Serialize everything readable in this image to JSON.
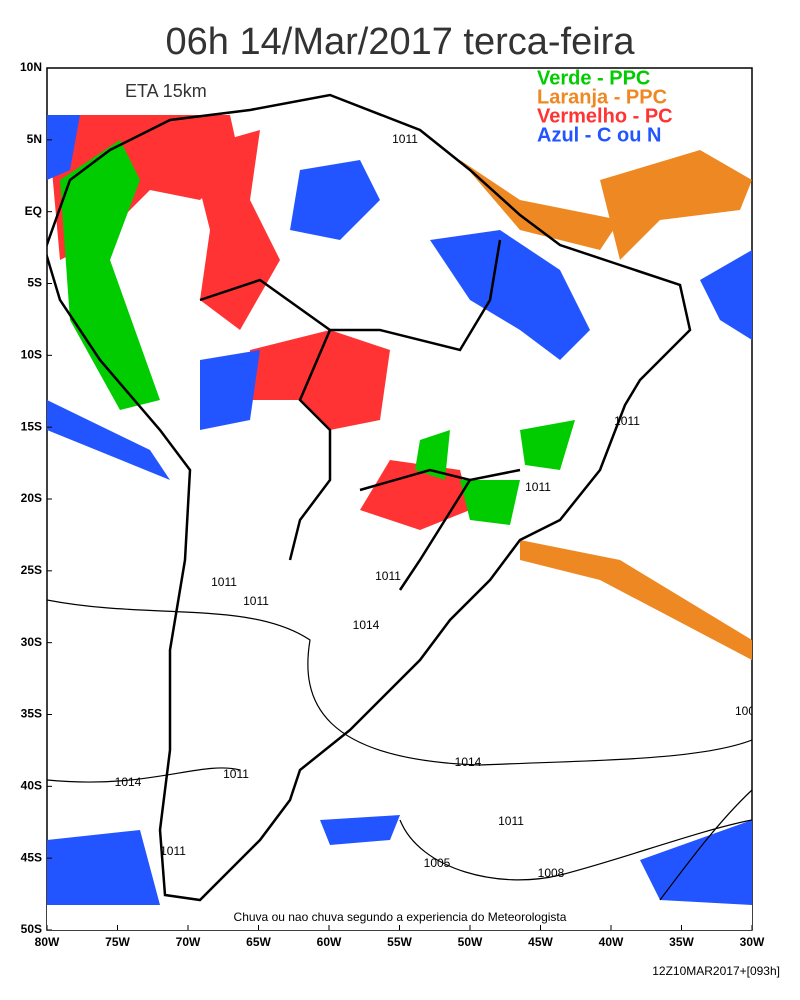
{
  "header": {
    "title": "06h 14/Mar/2017 terca-feira",
    "model": "ETA 15km"
  },
  "legend": [
    {
      "label": "Verde - PPC",
      "color": "#00cc00"
    },
    {
      "label": "Laranja - PPC",
      "color": "#ee8822"
    },
    {
      "label": "Vermelho - PC",
      "color": "#ff3333"
    },
    {
      "label": "Azul - C ou N",
      "color": "#2255ff"
    }
  ],
  "lat_labels": [
    "10N",
    "5N",
    "EQ",
    "5S",
    "10S",
    "15S",
    "20S",
    "25S",
    "30S",
    "35S",
    "40S",
    "45S",
    "50S"
  ],
  "lon_labels": [
    "80W",
    "75W",
    "70W",
    "65W",
    "60W",
    "55W",
    "50W",
    "45W",
    "40W",
    "35W",
    "30W"
  ],
  "isobar_labels": [
    "1011",
    "1011",
    "1011",
    "1011",
    "1011",
    "1011",
    "1014",
    "1014",
    "1011",
    "1014",
    "1011",
    "1011",
    "1005",
    "1008",
    "100"
  ],
  "caption": "Chuva ou nao chuva segundo a experiencia do Meteorologista",
  "run": "12Z10MAR2017+[093h]"
}
